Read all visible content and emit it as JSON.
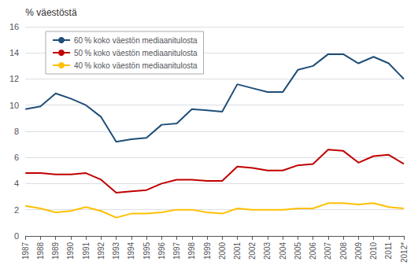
{
  "chart_data": {
    "type": "line",
    "ylabel": "% väestöstä",
    "categories": [
      "1987",
      "1988",
      "1989",
      "1990",
      "1991",
      "1992",
      "1993",
      "1994",
      "1995",
      "1996",
      "1997",
      "1998",
      "1999",
      "2000",
      "2001",
      "2002",
      "2003",
      "2004",
      "2005",
      "2006",
      "2007",
      "2008",
      "2009",
      "2010",
      "2011",
      "2012*"
    ],
    "series": [
      {
        "name": "60 % koko väestön mediaanitulosta",
        "color": "#1f4e79",
        "values": [
          9.7,
          9.9,
          10.9,
          10.5,
          10.0,
          9.1,
          7.2,
          7.4,
          7.5,
          8.5,
          8.6,
          9.7,
          9.6,
          9.5,
          11.6,
          11.3,
          11.0,
          11.0,
          12.7,
          13.0,
          13.9,
          13.9,
          13.2,
          13.7,
          13.2,
          12.0
        ]
      },
      {
        "name": "50 % koko väestön mediaanitulosta",
        "color": "#c00000",
        "values": [
          4.8,
          4.8,
          4.7,
          4.7,
          4.8,
          4.3,
          3.3,
          3.4,
          3.5,
          4.0,
          4.3,
          4.3,
          4.2,
          4.2,
          5.3,
          5.2,
          5.0,
          5.0,
          5.4,
          5.5,
          6.6,
          6.5,
          5.6,
          6.1,
          6.2,
          5.5
        ]
      },
      {
        "name": "40 % koko väestön mediaanitulosta",
        "color": "#ffc000",
        "values": [
          2.3,
          2.1,
          1.8,
          1.9,
          2.2,
          1.9,
          1.4,
          1.7,
          1.7,
          1.8,
          2.0,
          2.0,
          1.8,
          1.7,
          2.1,
          2.0,
          2.0,
          2.0,
          2.1,
          2.1,
          2.5,
          2.5,
          2.4,
          2.5,
          2.2,
          2.1
        ]
      }
    ],
    "ylim": [
      0,
      16
    ],
    "yticks": [
      0,
      2,
      4,
      6,
      8,
      10,
      12,
      14,
      16
    ],
    "grid": true,
    "legend": "upper left"
  }
}
